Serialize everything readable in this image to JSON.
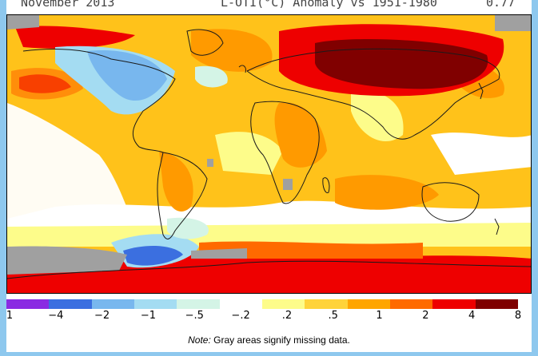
{
  "header": {
    "left": "November 2013",
    "center": "L-OTI(°C) Anomaly vs 1951-1980",
    "right": "0.77"
  },
  "legend": {
    "colors": [
      "#8a2be2",
      "#3b6fe0",
      "#78b7ee",
      "#a4dcf2",
      "#d4f4e6",
      "#ffffff",
      "#fdfc8a",
      "#ffd33a",
      "#ffa500",
      "#ff6a00",
      "#ee0000",
      "#7f0000"
    ],
    "ticks": [
      "1",
      "−4",
      "−2",
      "−1",
      "−.5",
      "−.2",
      ".2",
      ".5",
      "1",
      "2",
      "4",
      "8"
    ]
  },
  "note": {
    "label": "Note:",
    "text": "Gray areas signify missing data."
  },
  "map_colors": {
    "ocean_base": "#ffc21a",
    "white": "#ffffff",
    "pale_yellow": "#fdfc8a",
    "orange": "#ff9a00",
    "dark_orange": "#ff6a00",
    "red": "#ee0000",
    "dark_red": "#800000",
    "light_blue": "#78b7ee",
    "pale_blue": "#a4dcf2",
    "mint": "#d4f4e6",
    "blue": "#3b6fe0",
    "gray": "#a0a0a0",
    "coast": "#1a1a1a"
  }
}
